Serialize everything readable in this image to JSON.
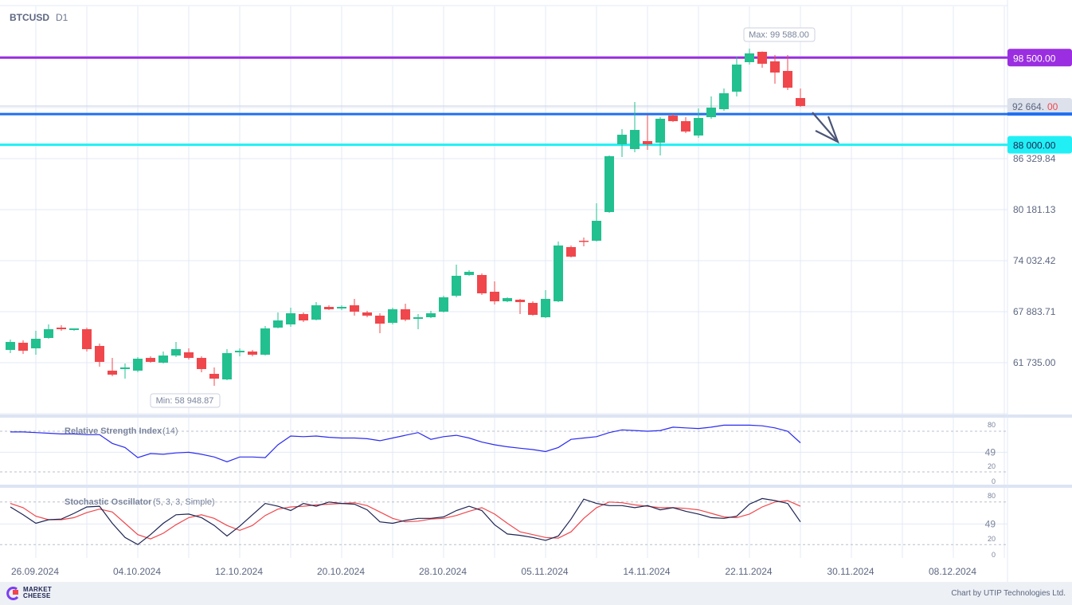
{
  "header": {
    "symbol": "BTCUSD",
    "timeframe": "D1"
  },
  "footer": {
    "logo_text": "MARKET CHEESE",
    "credit": "Chart by UTIP Technologies Ltd."
  },
  "colors": {
    "up": "#22c08f",
    "down": "#f0474c",
    "level_purple": "#9a2ee0",
    "level_blue": "#1f6ff2",
    "level_cyan": "#20f0f5",
    "rsi": "#2b2bf0",
    "stoch_k": "#1d2452",
    "stoch_d": "#f0474c",
    "arrow": "#4b5577"
  },
  "chart_data": {
    "type": "candlestick",
    "title": "BTCUSD D1",
    "y_ticks": [
      "86 329.84",
      "80 181.13",
      "74 032.42",
      "67 883.71",
      "61 735.00"
    ],
    "y_tick_values": [
      86329.84,
      80181.13,
      74032.42,
      67883.71,
      61735.0
    ],
    "x_ticks": [
      "26.09.2024",
      "04.10.2024",
      "12.10.2024",
      "20.10.2024",
      "28.10.2024",
      "05.11.2024",
      "14.11.2024",
      "22.11.2024",
      "30.11.2024",
      "08.12.2024"
    ],
    "levels": [
      {
        "label": "98 500.00",
        "value": 98500,
        "color": "#9a2ee0",
        "text_color": "#ffffff"
      },
      {
        "label": "88 000.00",
        "value": 88000,
        "color": "#20f0f5",
        "text_color": "#1d2452"
      }
    ],
    "blue_level_value": 91700,
    "current_price": {
      "label_main": "92 664.",
      "label_cents": "00",
      "value": 92664
    },
    "max_label": "Max: 99 588.00",
    "min_label": "Min: 58 948.87",
    "ohlc": [
      [
        63272,
        64521,
        62888,
        64233
      ],
      [
        64137,
        64425,
        62792,
        63176
      ],
      [
        63465,
        65578,
        62696,
        64617
      ],
      [
        64713,
        66347,
        64617,
        65770
      ],
      [
        65962,
        66250,
        65578,
        65770
      ],
      [
        65674,
        65866,
        65578,
        65866
      ],
      [
        65770,
        65962,
        63080,
        63368
      ],
      [
        63753,
        64041,
        61255,
        61831
      ],
      [
        60775,
        62312,
        60102,
        60294
      ],
      [
        60967,
        61639,
        59814,
        61159
      ],
      [
        60775,
        62408,
        60583,
        62216
      ],
      [
        62312,
        62504,
        61735,
        61831
      ],
      [
        61735,
        63080,
        61639,
        62600
      ],
      [
        62600,
        64233,
        62408,
        63368
      ],
      [
        62984,
        63465,
        62120,
        62312
      ],
      [
        62312,
        62504,
        60583,
        60967
      ],
      [
        60390,
        61159,
        58949,
        59814
      ],
      [
        59718,
        63368,
        59622,
        62888
      ],
      [
        62984,
        63465,
        62504,
        63176
      ],
      [
        63080,
        63272,
        62504,
        62696
      ],
      [
        62696,
        66154,
        62600,
        65866
      ],
      [
        65962,
        67788,
        65866,
        66827
      ],
      [
        66347,
        68364,
        66058,
        67692
      ],
      [
        67595,
        67788,
        66635,
        66827
      ],
      [
        66923,
        69037,
        66827,
        68652
      ],
      [
        68460,
        68652,
        68076,
        68172
      ],
      [
        68268,
        68652,
        68076,
        68460
      ],
      [
        68652,
        69421,
        67403,
        67884
      ],
      [
        67788,
        67980,
        67211,
        67403
      ],
      [
        67403,
        67692,
        65290,
        66443
      ],
      [
        66539,
        68364,
        66347,
        68172
      ],
      [
        68172,
        68844,
        66731,
        66923
      ],
      [
        67019,
        67595,
        65770,
        67211
      ],
      [
        67211,
        67980,
        67115,
        67692
      ],
      [
        67884,
        69805,
        67788,
        69613
      ],
      [
        69805,
        73552,
        69613,
        72207
      ],
      [
        72303,
        72879,
        72207,
        72687
      ],
      [
        72303,
        72495,
        69901,
        70093
      ],
      [
        70285,
        71534,
        68748,
        69133
      ],
      [
        69133,
        69613,
        69037,
        69517
      ],
      [
        69325,
        69421,
        67595,
        69037
      ],
      [
        68940,
        69133,
        67403,
        67499
      ],
      [
        67211,
        70477,
        67115,
        69421
      ],
      [
        69133,
        76338,
        69037,
        75858
      ],
      [
        75665,
        75858,
        74419,
        74515
      ],
      [
        76434,
        76818,
        75762,
        76338
      ],
      [
        76434,
        80949,
        76338,
        78836
      ],
      [
        79890,
        86710,
        79800,
        86620
      ],
      [
        88058,
        89884,
        86519,
        89211
      ],
      [
        87482,
        93150,
        87098,
        89788
      ],
      [
        88442,
        91613,
        87386,
        88058
      ],
      [
        88250,
        91325,
        86713,
        91133
      ],
      [
        91517,
        91709,
        90748,
        90844
      ],
      [
        90844,
        91325,
        89403,
        89595
      ],
      [
        89115,
        92382,
        88827,
        91229
      ],
      [
        91325,
        93823,
        91133,
        92478
      ],
      [
        92285,
        94783,
        92093,
        94207
      ],
      [
        94399,
        98626,
        93823,
        97665
      ],
      [
        97954,
        99588,
        97665,
        99011
      ],
      [
        99203,
        99250,
        97281,
        97762
      ],
      [
        98050,
        98819,
        95359,
        96704
      ],
      [
        96896,
        98819,
        94591,
        94879
      ],
      [
        93630,
        94783,
        92574,
        92664
      ]
    ],
    "rsi": {
      "title": "Relative Strength Index",
      "params": "(14)",
      "ticks": [
        "80",
        "49",
        "20",
        "0"
      ],
      "tick_values": [
        80,
        49,
        20,
        0
      ],
      "values": [
        79,
        79,
        78,
        77,
        76,
        76,
        75,
        75,
        62,
        56,
        41,
        47,
        46,
        48,
        49,
        46,
        42,
        35,
        42,
        42,
        41,
        60,
        73,
        72,
        73,
        71,
        70,
        70,
        69,
        66,
        70,
        74,
        78,
        68,
        72,
        74,
        70,
        64,
        60,
        57,
        55,
        53,
        50,
        56,
        68,
        70,
        72,
        78,
        82,
        81,
        80,
        81,
        86,
        85,
        84,
        86,
        89,
        89,
        89,
        88,
        85,
        80,
        63
      ]
    },
    "stochastic": {
      "title": "Stochastic Oscillator",
      "params": "(5, 3, 3, Simple)",
      "ticks": [
        "80",
        "49",
        "20",
        "0"
      ],
      "tick_values": [
        80,
        49,
        20,
        0
      ],
      "k": [
        73,
        62,
        50,
        55,
        56,
        64,
        73,
        74,
        50,
        30,
        20,
        34,
        50,
        62,
        63,
        58,
        47,
        32,
        46,
        62,
        78,
        74,
        68,
        78,
        74,
        80,
        78,
        77,
        69,
        52,
        50,
        54,
        57,
        57,
        59,
        68,
        74,
        68,
        48,
        35,
        33,
        30,
        26,
        32,
        56,
        84,
        78,
        75,
        75,
        72,
        75,
        69,
        72,
        67,
        63,
        58,
        57,
        60,
        77,
        85,
        82,
        78,
        52
      ],
      "d": [
        78,
        72,
        60,
        55,
        55,
        58,
        65,
        70,
        66,
        50,
        34,
        28,
        36,
        48,
        58,
        62,
        57,
        47,
        40,
        47,
        61,
        70,
        73,
        74,
        76,
        77,
        78,
        79,
        75,
        66,
        57,
        52,
        53,
        56,
        57,
        61,
        67,
        72,
        63,
        50,
        38,
        34,
        30,
        29,
        38,
        57,
        72,
        80,
        79,
        76,
        74,
        72,
        72,
        71,
        69,
        64,
        59,
        58,
        63,
        73,
        80,
        82,
        74
      ]
    }
  }
}
